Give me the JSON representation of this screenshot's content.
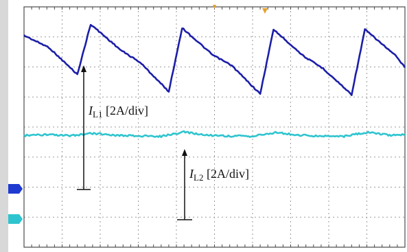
{
  "colors": {
    "background": "#ffffff",
    "grid": "#9a9a9a",
    "frame": "#4a4a4a",
    "left_strip": "#d8d8d8",
    "il1_trace": "#1c1ea8",
    "il2_trace": "#2ec4cf",
    "marker_ch1": "#1f3ad0",
    "marker_ch2": "#2ec4cf",
    "trigger_marker": "#e6a030",
    "annotation": "#111111"
  },
  "annotations": {
    "il1": {
      "symbol": "I",
      "subscript": "L1",
      "scale": "[2A/div]"
    },
    "il2": {
      "symbol": "I",
      "subscript": "L2",
      "scale": "[2A/div]"
    }
  },
  "chart_data": {
    "type": "line",
    "title": "",
    "xlabel": "",
    "ylabel": "",
    "grid": true,
    "x_divisions": 10,
    "y_divisions": 8,
    "xlim": [
      0,
      10
    ],
    "ylim": [
      0,
      8
    ],
    "series": [
      {
        "id": "il1",
        "x": [
          0.0,
          0.65,
          1.4,
          1.75,
          2.55,
          3.05,
          3.8,
          4.15,
          4.95,
          5.45,
          6.2,
          6.55,
          7.35,
          7.85,
          8.6,
          8.95,
          9.75,
          10.0
        ],
        "y": [
          7.05,
          6.65,
          5.75,
          7.42,
          6.55,
          6.15,
          5.18,
          7.3,
          6.4,
          6.05,
          5.1,
          7.25,
          6.35,
          5.95,
          5.08,
          7.25,
          6.38,
          5.98
        ]
      },
      {
        "id": "il2",
        "x": [
          0.0,
          0.6,
          1.2,
          1.8,
          2.4,
          3.0,
          3.6,
          4.2,
          4.8,
          5.4,
          6.0,
          6.6,
          7.2,
          7.8,
          8.4,
          9.0,
          9.6,
          10.0
        ],
        "y": [
          3.72,
          3.74,
          3.71,
          3.79,
          3.73,
          3.7,
          3.69,
          3.83,
          3.73,
          3.7,
          3.69,
          3.82,
          3.73,
          3.7,
          3.69,
          3.82,
          3.73,
          3.75
        ]
      }
    ]
  }
}
